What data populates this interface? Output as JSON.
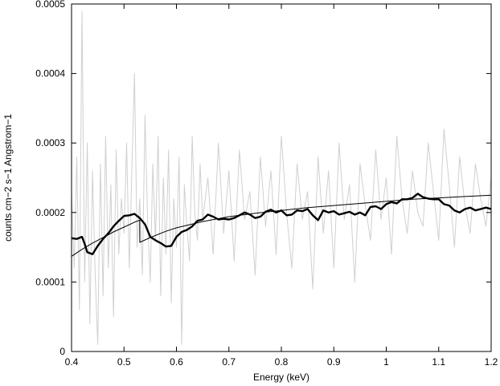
{
  "chart_data": {
    "type": "line",
    "title": "",
    "xlabel": "Energy (keV)",
    "ylabel": "counts cm−2 s−1 Angstrom−1",
    "xlim": [
      0.4,
      1.2
    ],
    "ylim": [
      0,
      0.0005
    ],
    "x_ticks": [
      "0.4",
      "0.5",
      "0.6",
      "0.7",
      "0.8",
      "0.9",
      "1",
      "1.1",
      "1.2"
    ],
    "y_ticks": [
      "0",
      "0.0001",
      "0.0002",
      "0.0003",
      "0.0004",
      "0.0005"
    ],
    "grid": false,
    "legend": "none",
    "colors": {
      "raw": "#d0d0d0",
      "smoothed": "#000000",
      "model": "#000000"
    },
    "series": [
      {
        "style": "raw-noisy",
        "x": [
          0.4,
          0.405,
          0.41,
          0.415,
          0.42,
          0.425,
          0.43,
          0.435,
          0.44,
          0.445,
          0.45,
          0.455,
          0.46,
          0.465,
          0.47,
          0.475,
          0.48,
          0.485,
          0.49,
          0.495,
          0.5,
          0.505,
          0.51,
          0.515,
          0.52,
          0.525,
          0.53,
          0.535,
          0.54,
          0.545,
          0.55,
          0.555,
          0.56,
          0.565,
          0.57,
          0.575,
          0.58,
          0.585,
          0.59,
          0.595,
          0.6,
          0.605,
          0.61,
          0.615,
          0.62,
          0.625,
          0.63,
          0.635,
          0.64,
          0.645,
          0.65,
          0.66,
          0.67,
          0.68,
          0.69,
          0.7,
          0.71,
          0.72,
          0.73,
          0.74,
          0.75,
          0.76,
          0.77,
          0.78,
          0.79,
          0.8,
          0.81,
          0.82,
          0.83,
          0.84,
          0.85,
          0.86,
          0.87,
          0.88,
          0.89,
          0.9,
          0.91,
          0.92,
          0.93,
          0.94,
          0.95,
          0.96,
          0.97,
          0.98,
          0.99,
          1.0,
          1.01,
          1.02,
          1.03,
          1.04,
          1.05,
          1.06,
          1.07,
          1.08,
          1.09,
          1.1,
          1.11,
          1.12,
          1.13,
          1.14,
          1.15,
          1.16,
          1.17,
          1.18,
          1.19,
          1.2
        ],
        "y": [
          0.00023,
          0.00012,
          0.00028,
          6e-05,
          0.00049,
          0.0001,
          0.0003,
          4e-05,
          0.00026,
          0.00011,
          1e-05,
          0.00027,
          8e-05,
          0.00031,
          0.00012,
          0.00024,
          5e-05,
          0.00029,
          0.00014,
          0.00022,
          0.00017,
          0.0003,
          0.00012,
          0.00026,
          0.0004,
          0.00015,
          0.00022,
          0.00011,
          0.00034,
          0.00019,
          0.0001,
          0.00027,
          0.00016,
          0.00031,
          8e-05,
          0.00025,
          0.00014,
          0.00029,
          7e-05,
          0.00022,
          0.00015,
          0.00028,
          1e-05,
          0.00024,
          0.00018,
          0.00013,
          0.00031,
          0.0002,
          0.00016,
          0.00027,
          0.00019,
          0.00025,
          0.00014,
          0.0003,
          0.00017,
          0.00026,
          0.00013,
          0.00029,
          0.00019,
          0.00023,
          0.00011,
          0.00028,
          0.00018,
          0.00026,
          0.00014,
          0.00031,
          0.0002,
          0.00012,
          0.00027,
          0.00019,
          0.00023,
          9e-05,
          0.00028,
          0.00017,
          0.00026,
          0.00012,
          0.0003,
          0.00019,
          0.00024,
          0.0001,
          0.00027,
          0.00021,
          0.00016,
          0.00029,
          0.00019,
          0.00025,
          0.00014,
          0.00031,
          0.00022,
          0.00017,
          0.00026,
          0.0002,
          0.00018,
          0.0003,
          0.00023,
          0.00016,
          0.00032,
          0.00024,
          0.00015,
          0.00028,
          0.00021,
          0.00017,
          0.00027,
          0.00022,
          0.00018,
          0.00025
        ]
      },
      {
        "style": "smoothed",
        "x": [
          0.4,
          0.41,
          0.42,
          0.425,
          0.43,
          0.44,
          0.45,
          0.46,
          0.47,
          0.48,
          0.49,
          0.5,
          0.51,
          0.52,
          0.53,
          0.54,
          0.55,
          0.56,
          0.57,
          0.58,
          0.59,
          0.6,
          0.61,
          0.62,
          0.63,
          0.64,
          0.65,
          0.66,
          0.67,
          0.68,
          0.69,
          0.7,
          0.71,
          0.72,
          0.73,
          0.74,
          0.75,
          0.76,
          0.77,
          0.78,
          0.79,
          0.8,
          0.81,
          0.82,
          0.83,
          0.84,
          0.85,
          0.86,
          0.87,
          0.88,
          0.89,
          0.9,
          0.91,
          0.92,
          0.93,
          0.94,
          0.95,
          0.96,
          0.97,
          0.98,
          0.99,
          1.0,
          1.01,
          1.02,
          1.03,
          1.04,
          1.05,
          1.06,
          1.07,
          1.08,
          1.09,
          1.1,
          1.11,
          1.12,
          1.13,
          1.14,
          1.15,
          1.16,
          1.17,
          1.18,
          1.19,
          1.2
        ],
        "y": [
          0.000163,
          0.000162,
          0.000165,
          0.000155,
          0.000143,
          0.00014,
          0.000152,
          0.000162,
          0.00017,
          0.00018,
          0.000188,
          0.000195,
          0.000196,
          0.000198,
          0.000192,
          0.000183,
          0.000165,
          0.00016,
          0.000156,
          0.000151,
          0.000152,
          0.000165,
          0.000172,
          0.000175,
          0.00018,
          0.000188,
          0.00019,
          0.000197,
          0.000194,
          0.00019,
          0.000191,
          0.00019,
          0.000192,
          0.000196,
          0.0002,
          0.000197,
          0.000192,
          0.000194,
          0.000201,
          0.000204,
          0.0002,
          0.000203,
          0.000196,
          0.000197,
          0.000203,
          0.000202,
          0.000205,
          0.000196,
          0.000189,
          0.000203,
          0.0002,
          0.000202,
          0.000197,
          0.000199,
          0.000201,
          0.000197,
          0.0002,
          0.000196,
          0.000208,
          0.000209,
          0.000205,
          0.000212,
          0.000215,
          0.000213,
          0.000219,
          0.000219,
          0.000221,
          0.000227,
          0.000222,
          0.00022,
          0.000219,
          0.000219,
          0.000212,
          0.00021,
          0.000203,
          0.0002,
          0.000205,
          0.000207,
          0.000203,
          0.000205,
          0.000207,
          0.000205
        ]
      },
      {
        "style": "model",
        "x": [
          0.4,
          0.42,
          0.44,
          0.46,
          0.48,
          0.5,
          0.52,
          0.5299,
          0.5301,
          0.55,
          0.58,
          0.6,
          0.65,
          0.7,
          0.75,
          0.8,
          0.85,
          0.9,
          0.95,
          1.0,
          1.05,
          1.1,
          1.15,
          1.2
        ],
        "y": [
          0.000137,
          0.000147,
          0.000156,
          0.000164,
          0.000172,
          0.000179,
          0.000186,
          0.000189,
          0.000157,
          0.000164,
          0.000173,
          0.000178,
          0.000187,
          0.000194,
          0.000199,
          0.000203,
          0.000207,
          0.00021,
          0.000213,
          0.000216,
          0.000219,
          0.000221,
          0.000223,
          0.000225
        ]
      }
    ]
  }
}
